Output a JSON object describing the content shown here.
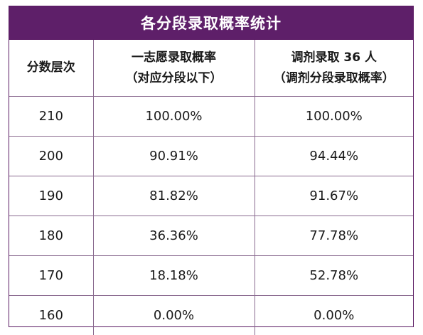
{
  "title": "各分段录取概率统计",
  "headers": {
    "col1": "分数层次",
    "col2_line1": "一志愿录取概率",
    "col2_line2": "（对应分段以下）",
    "col3_line1": "调剂录取 36 人",
    "col3_line2": "（调剂分段录取概率）"
  },
  "rows": [
    {
      "score": "210",
      "first_choice": "100.00%",
      "adjustment": "100.00%"
    },
    {
      "score": "200",
      "first_choice": "90.91%",
      "adjustment": "94.44%"
    },
    {
      "score": "190",
      "first_choice": "81.82%",
      "adjustment": "91.67%"
    },
    {
      "score": "180",
      "first_choice": "36.36%",
      "adjustment": "77.78%"
    },
    {
      "score": "170",
      "first_choice": "18.18%",
      "adjustment": "52.78%"
    },
    {
      "score": "160",
      "first_choice": "0.00%",
      "adjustment": "0.00%"
    }
  ],
  "colors": {
    "header_bg": "#5e1f69",
    "header_text": "#ffffff",
    "border": "#8a6a8f"
  }
}
